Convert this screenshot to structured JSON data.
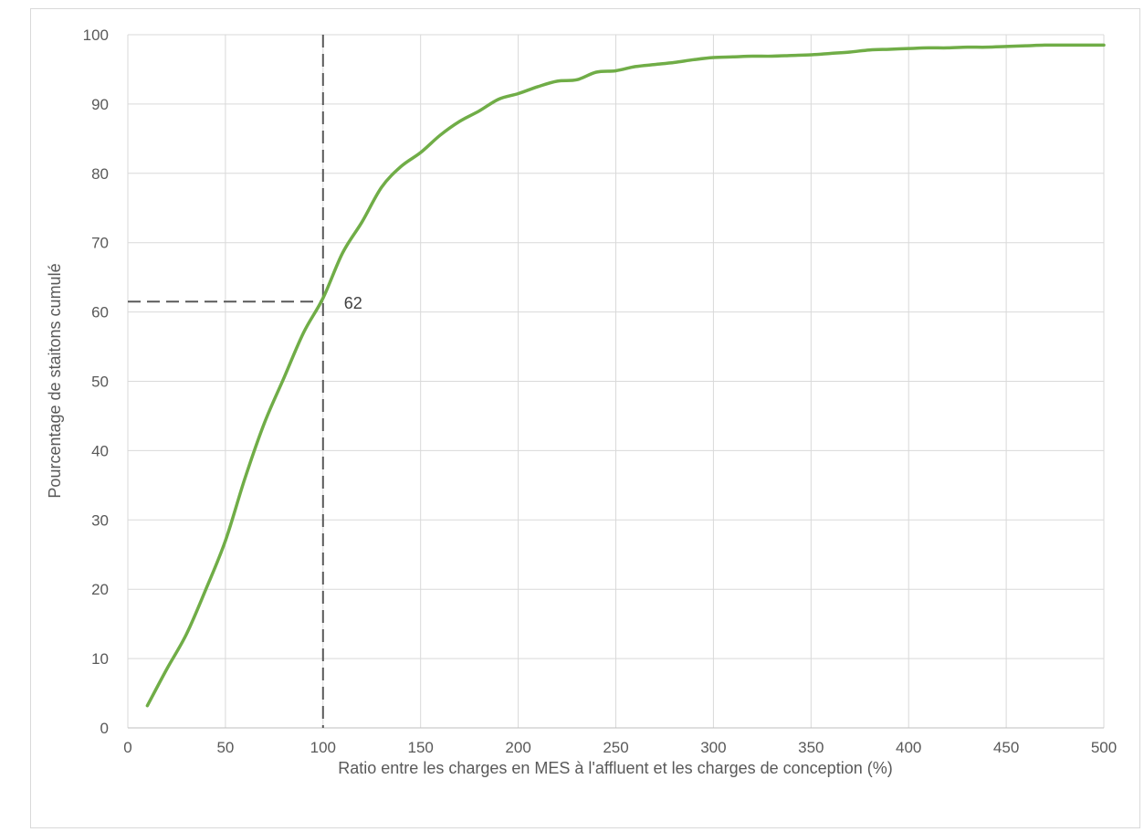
{
  "chart_data": {
    "type": "line",
    "title": "",
    "xlabel": "Ratio entre les charges en MES à l'affluent et les charges de conception (%)",
    "ylabel": "Pourcentage de staitons cumulé",
    "xlim": [
      0,
      500
    ],
    "ylim": [
      0,
      100
    ],
    "x_ticks": [
      "0",
      "50",
      "100",
      "150",
      "200",
      "250",
      "300",
      "350",
      "400",
      "450",
      "500"
    ],
    "y_ticks": [
      "0",
      "10",
      "20",
      "30",
      "40",
      "50",
      "60",
      "70",
      "80",
      "90",
      "100"
    ],
    "grid": "vertical-and-horizontal",
    "legend": "none",
    "series": [
      {
        "color": "#70ad47",
        "x": [
          10,
          20,
          30,
          40,
          50,
          60,
          70,
          80,
          90,
          100,
          110,
          120,
          130,
          140,
          150,
          160,
          170,
          180,
          190,
          200,
          210,
          220,
          230,
          240,
          250,
          260,
          270,
          280,
          290,
          300,
          310,
          320,
          330,
          340,
          350,
          360,
          370,
          380,
          390,
          400,
          410,
          420,
          430,
          440,
          450,
          460,
          470,
          480,
          490,
          500
        ],
        "y": [
          3.2,
          8.5,
          13.5,
          20.0,
          27.0,
          36.0,
          44.0,
          50.5,
          57.0,
          62.0,
          68.5,
          73.0,
          78.0,
          81.0,
          83.0,
          85.5,
          87.5,
          89.0,
          90.7,
          91.5,
          92.5,
          93.3,
          93.5,
          94.6,
          94.8,
          95.4,
          95.7,
          96.0,
          96.4,
          96.7,
          96.8,
          96.9,
          96.9,
          97.0,
          97.1,
          97.3,
          97.5,
          97.8,
          97.9,
          98.0,
          98.1,
          98.1,
          98.2,
          98.2,
          98.3,
          98.4,
          98.5,
          98.5,
          98.5,
          98.5
        ]
      }
    ],
    "reference": {
      "x": 100,
      "y": 61.5,
      "label": "62",
      "color": "#595959"
    }
  }
}
